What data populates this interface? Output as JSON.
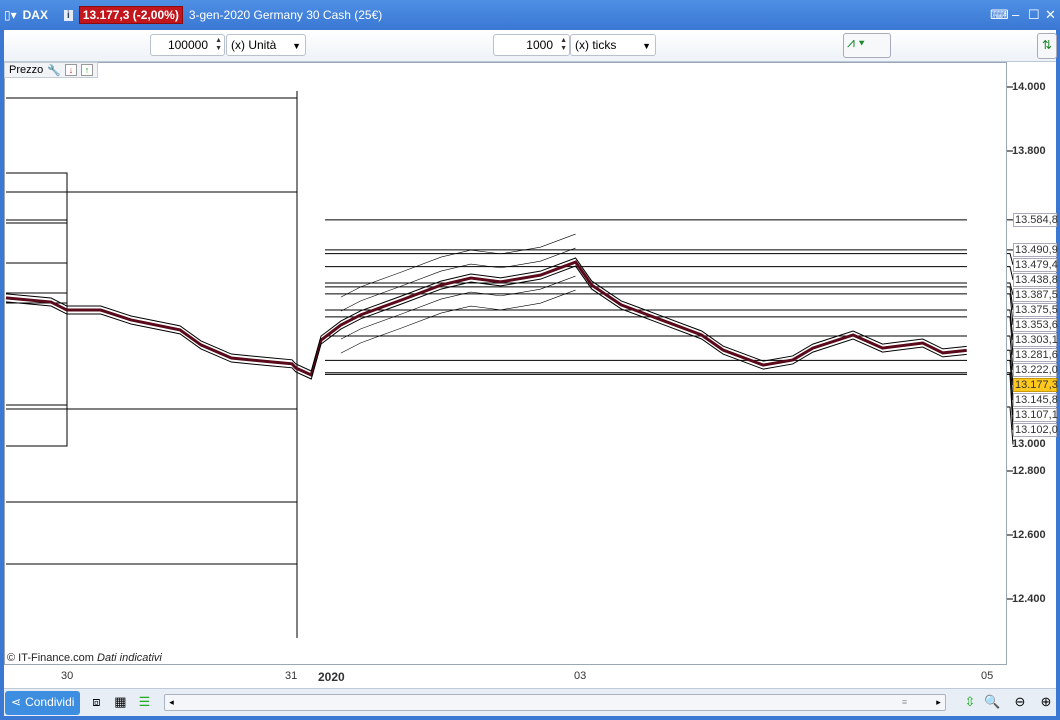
{
  "titlebar": {
    "symbol": "DAX",
    "last_price_change": "13.177,3 (-2,00%)",
    "description": "3-gen-2020 Germany 30 Cash (25€)",
    "price_badge_color": "#c0161c"
  },
  "toolbar": {
    "quantity_value": "100000",
    "quantity_unit": "(x) Unità",
    "ticks_value": "1000",
    "ticks_unit": "(x) ticks"
  },
  "panel": {
    "label": "Prezzo"
  },
  "footer": {
    "credit": "© IT-Finance.com",
    "disclaimer": "Dati indicativi",
    "share_label": "Condividi"
  },
  "chart_data": {
    "type": "line",
    "y_ticks": [
      "14.000",
      "13.800",
      "13.000",
      "12.800",
      "12.600",
      "12.400"
    ],
    "y_tick_values": [
      14000,
      13800,
      13000,
      12800,
      12600,
      12400
    ],
    "x_ticks": [
      {
        "label": "30",
        "t": "2019-12-30 00:00"
      },
      {
        "label": "31",
        "t": "2019-12-31 00:00"
      },
      {
        "label": "2020",
        "t": "2020-01-02 00:00",
        "bold": true
      },
      {
        "label": "03",
        "t": "2020-01-03 00:00"
      },
      {
        "label": "05",
        "t": "2020-01-05 00:00"
      }
    ],
    "price_levels": [
      {
        "label": "13.584,8",
        "value": 13584.8
      },
      {
        "label": "13.490,9",
        "value": 13490.9
      },
      {
        "label": "13.479,4",
        "value": 13479.4
      },
      {
        "label": "13.438,8",
        "value": 13438.8
      },
      {
        "label": "13.387,5",
        "value": 13387.5
      },
      {
        "label": "13.375,5",
        "value": 13375.5
      },
      {
        "label": "13.353,6",
        "value": 13353.6
      },
      {
        "label": "13.303,1",
        "value": 13303.1
      },
      {
        "label": "13.281,6",
        "value": 13281.6
      },
      {
        "label": "13.222,0",
        "value": 13222.0
      },
      {
        "label": "13.145,8",
        "value": 13145.8
      },
      {
        "label": "13.107,1",
        "value": 13107.1
      },
      {
        "label": "13.102,0",
        "value": 13102.0
      }
    ],
    "last_price": {
      "label": "13.177,3",
      "value": 13177.3,
      "color": "#ffc81e"
    },
    "series": [
      {
        "points": [
          [
            "2019-12-27 17:00",
            13341
          ],
          [
            "2019-12-29 09:00",
            13328
          ],
          [
            "2019-12-29 23:00",
            13303
          ],
          [
            "2019-12-30 03:30",
            13303
          ],
          [
            "2019-12-30 06:45",
            13272
          ],
          [
            "2019-12-30 12:00",
            13241
          ],
          [
            "2019-12-30 14:15",
            13194
          ],
          [
            "2019-12-30 17:30",
            13153
          ],
          [
            "2019-12-30 21:45",
            13141
          ],
          [
            "2019-12-31 00:00",
            13135
          ],
          [
            "2019-12-31 02:00",
            13122
          ],
          [
            "2019-12-31 10:00",
            13100
          ],
          [
            "2020-01-02 00:00",
            13209
          ],
          [
            "2020-01-02 01:50",
            13256
          ],
          [
            "2020-01-02 03:40",
            13288
          ],
          [
            "2020-01-02 07:24",
            13334
          ],
          [
            "2020-01-02 11:05",
            13381
          ],
          [
            "2020-01-02 13:50",
            13403
          ],
          [
            "2020-01-02 16:35",
            13391
          ],
          [
            "2020-01-02 20:15",
            13412
          ],
          [
            "2020-01-02 23:30",
            13453
          ],
          [
            "2020-01-03 00:40",
            13381
          ],
          [
            "2020-01-03 02:30",
            13319
          ],
          [
            "2020-01-03 05:00",
            13272
          ],
          [
            "2020-01-03 07:30",
            13225
          ],
          [
            "2020-01-03 08:50",
            13178
          ],
          [
            "2020-01-03 11:20",
            13131
          ],
          [
            "2020-01-03 13:10",
            13147
          ],
          [
            "2020-01-03 14:25",
            13184
          ],
          [
            "2020-01-03 16:55",
            13225
          ],
          [
            "2020-01-03 18:45",
            13184
          ],
          [
            "2020-01-03 21:15",
            13200
          ],
          [
            "2020-01-03 22:30",
            13169
          ],
          [
            "2020-01-03 23:59",
            13177
          ]
        ]
      }
    ]
  }
}
